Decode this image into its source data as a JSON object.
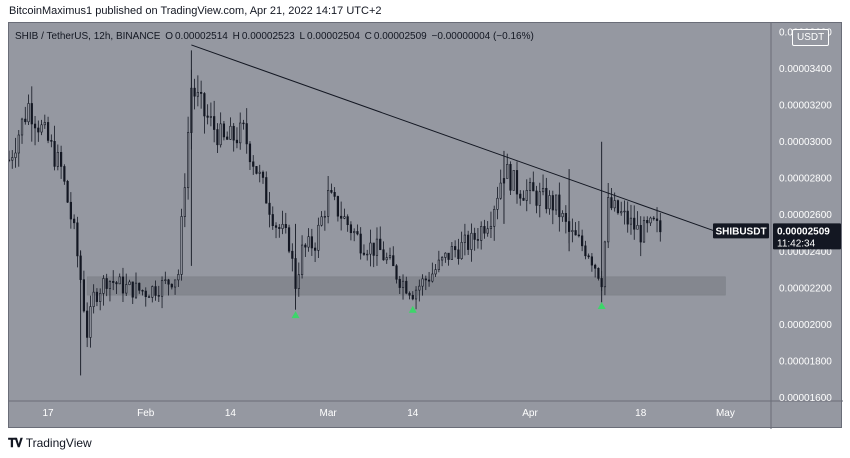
{
  "publisher": "BitcoinMaximus1 published on TradingView.com, Apr 21, 2022 14:17 UTC+2",
  "symbol_header": {
    "symbol": "SHIB / TetherUS, 12h, BINANCE",
    "o_label": "O",
    "o_value": "0.00002514",
    "h_label": "H",
    "h_value": "0.00002523",
    "l_label": "L",
    "l_value": "0.00002504",
    "c_label": "C",
    "c_value": "0.00002509",
    "change": "−0.00000004 (−0.16%)"
  },
  "currency_badge": "USDT",
  "footer": {
    "brand": "TradingView",
    "logo": "tradingview-logo"
  },
  "colors": {
    "background": "#9598a1",
    "candle": "#131722",
    "trendline": "#131722",
    "support_zone": "#84878f",
    "marker": "#3dd66a",
    "price_label_bg": "#131722"
  },
  "chart_data": {
    "type": "candlestick",
    "symbol": "SHIBUSDT",
    "interval": "12h",
    "exchange": "BINANCE",
    "last_price": "0.00002509",
    "price_label": "SHIBUSDT",
    "countdown": "11:42:34",
    "y_ticks": [
      "0.00001600",
      "0.00001800",
      "0.00002000",
      "0.00002200",
      "0.00002400",
      "0.00002600",
      "0.00002800",
      "0.00003000",
      "0.00003200",
      "0.00003400",
      "0.00003600"
    ],
    "y_range": [
      1.58e-05,
      3.65e-05
    ],
    "x_ticks": [
      "17",
      "Feb",
      "14",
      "Mar",
      "14",
      "Apr",
      "18",
      "May"
    ],
    "x_tick_dates": [
      "2022-01-17",
      "2022-02-01",
      "2022-02-14",
      "2022-03-01",
      "2022-03-14",
      "2022-04-01",
      "2022-04-18",
      "2022-05-01"
    ],
    "x_range": [
      "2022-01-11",
      "2022-05-08"
    ],
    "trendline": {
      "start": {
        "date": "2022-02-08",
        "price": 3.53e-05
      },
      "end": {
        "date": "2022-05-01",
        "price": 2.49e-05
      }
    },
    "support_zone": {
      "date_start": "2022-01-23",
      "date_end": "2022-05-01",
      "price_low": 2.16e-05,
      "price_high": 2.26e-05
    },
    "markers": [
      {
        "date": "2022-02-24",
        "price": 2.05e-05,
        "shape": "triangle-up"
      },
      {
        "date": "2022-03-14",
        "price": 2.08e-05,
        "shape": "triangle-up"
      },
      {
        "date": "2022-04-12",
        "price": 2.1e-05,
        "shape": "triangle-up"
      }
    ],
    "anchors": [
      [
        "2022-01-11",
        2.9e-05
      ],
      [
        "2022-01-14",
        3.2e-05
      ],
      [
        "2022-01-17",
        3e-05
      ],
      [
        "2022-01-19",
        2.85e-05
      ],
      [
        "2022-01-21",
        2.5e-05
      ],
      [
        "2022-01-22",
        2.25e-05
      ],
      [
        "2022-01-23",
        1.95e-05
      ],
      [
        "2022-01-24",
        2.15e-05
      ],
      [
        "2022-01-26",
        2.25e-05
      ],
      [
        "2022-01-29",
        2.2e-05
      ],
      [
        "2022-02-01",
        2.18e-05
      ],
      [
        "2022-02-04",
        2.22e-05
      ],
      [
        "2022-02-06",
        2.28e-05
      ],
      [
        "2022-02-07",
        2.8e-05
      ],
      [
        "2022-02-08",
        3.3e-05
      ],
      [
        "2022-02-10",
        3.15e-05
      ],
      [
        "2022-02-13",
        3e-05
      ],
      [
        "2022-02-16",
        3.05e-05
      ],
      [
        "2022-02-18",
        2.85e-05
      ],
      [
        "2022-02-21",
        2.55e-05
      ],
      [
        "2022-02-23",
        2.45e-05
      ],
      [
        "2022-02-24",
        2.22e-05
      ],
      [
        "2022-02-25",
        2.4e-05
      ],
      [
        "2022-02-27",
        2.45e-05
      ],
      [
        "2022-03-01",
        2.7e-05
      ],
      [
        "2022-03-03",
        2.6e-05
      ],
      [
        "2022-03-06",
        2.45e-05
      ],
      [
        "2022-03-09",
        2.4e-05
      ],
      [
        "2022-03-12",
        2.25e-05
      ],
      [
        "2022-03-14",
        2.18e-05
      ],
      [
        "2022-03-17",
        2.28e-05
      ],
      [
        "2022-03-20",
        2.4e-05
      ],
      [
        "2022-03-23",
        2.45e-05
      ],
      [
        "2022-03-26",
        2.6e-05
      ],
      [
        "2022-03-28",
        2.85e-05
      ],
      [
        "2022-03-30",
        2.75e-05
      ],
      [
        "2022-04-02",
        2.7e-05
      ],
      [
        "2022-04-05",
        2.65e-05
      ],
      [
        "2022-04-07",
        2.5e-05
      ],
      [
        "2022-04-10",
        2.4e-05
      ],
      [
        "2022-04-12",
        2.25e-05
      ],
      [
        "2022-04-13",
        2.65e-05
      ],
      [
        "2022-04-15",
        2.6e-05
      ],
      [
        "2022-04-18",
        2.5e-05
      ],
      [
        "2022-04-20",
        2.54e-05
      ],
      [
        "2022-04-21",
        2.51e-05
      ]
    ]
  }
}
